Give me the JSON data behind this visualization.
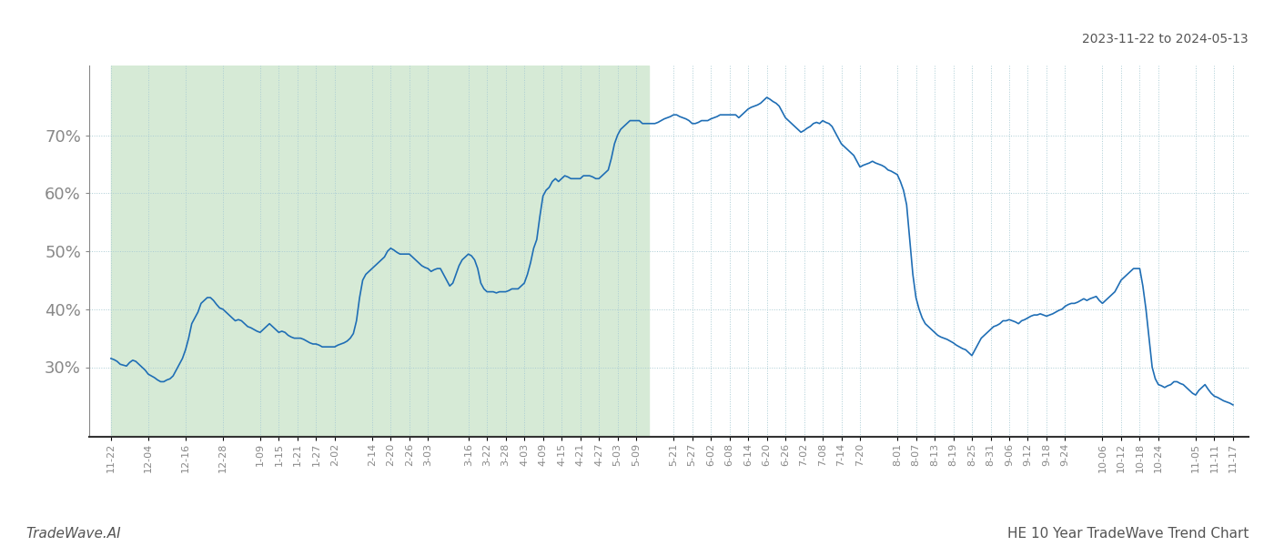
{
  "title_top_right": "2023-11-22 to 2024-05-13",
  "title_bottom_right": "HE 10 Year TradeWave Trend Chart",
  "title_bottom_left": "TradeWave.AI",
  "line_color": "#1f6eb5",
  "line_width": 1.2,
  "bg_color": "#ffffff",
  "shade_color": "#d6ead6",
  "shade_start": "2023-11-22",
  "shade_end": "2024-05-13",
  "x_start": "2023-11-15",
  "x_end": "2024-11-22",
  "ylim": [
    18,
    82
  ],
  "yticks": [
    30,
    40,
    50,
    60,
    70
  ],
  "ytick_labels": [
    "30%",
    "40%",
    "50%",
    "60%",
    "70%"
  ],
  "grid_color": "#aaccd4",
  "grid_style": ":",
  "xtick_dates": [
    "2023-11-22",
    "2023-12-04",
    "2023-12-16",
    "2023-12-28",
    "2024-01-09",
    "2024-01-15",
    "2024-01-21",
    "2024-01-27",
    "2024-02-02",
    "2024-02-14",
    "2024-02-20",
    "2024-02-26",
    "2024-03-03",
    "2024-03-16",
    "2024-03-22",
    "2024-03-28",
    "2024-04-03",
    "2024-04-09",
    "2024-04-15",
    "2024-04-21",
    "2024-04-27",
    "2024-05-03",
    "2024-05-09",
    "2024-05-21",
    "2024-05-27",
    "2024-06-02",
    "2024-06-08",
    "2024-06-14",
    "2024-06-20",
    "2024-06-26",
    "2024-07-02",
    "2024-07-08",
    "2024-07-14",
    "2024-07-20",
    "2024-08-01",
    "2024-08-07",
    "2024-08-13",
    "2024-08-19",
    "2024-08-25",
    "2024-08-31",
    "2024-09-06",
    "2024-09-12",
    "2024-09-18",
    "2024-09-24",
    "2024-10-06",
    "2024-10-12",
    "2024-10-18",
    "2024-10-24",
    "2024-11-05",
    "2024-11-11",
    "2024-11-17"
  ],
  "series": [
    [
      "2023-11-22",
      31.5
    ],
    [
      "2023-11-23",
      31.3
    ],
    [
      "2023-11-24",
      31.0
    ],
    [
      "2023-11-25",
      30.5
    ],
    [
      "2023-11-27",
      30.2
    ],
    [
      "2023-11-28",
      30.8
    ],
    [
      "2023-11-29",
      31.2
    ],
    [
      "2023-11-30",
      31.0
    ],
    [
      "2023-12-01",
      30.5
    ],
    [
      "2023-12-02",
      30.0
    ],
    [
      "2023-12-03",
      29.5
    ],
    [
      "2023-12-04",
      28.8
    ],
    [
      "2023-12-05",
      28.5
    ],
    [
      "2023-12-06",
      28.2
    ],
    [
      "2023-12-07",
      27.8
    ],
    [
      "2023-12-08",
      27.5
    ],
    [
      "2023-12-09",
      27.5
    ],
    [
      "2023-12-10",
      27.8
    ],
    [
      "2023-12-11",
      28.0
    ],
    [
      "2023-12-12",
      28.5
    ],
    [
      "2023-12-13",
      29.5
    ],
    [
      "2023-12-14",
      30.5
    ],
    [
      "2023-12-15",
      31.5
    ],
    [
      "2023-12-16",
      33.0
    ],
    [
      "2023-12-17",
      35.0
    ],
    [
      "2023-12-18",
      37.5
    ],
    [
      "2023-12-19",
      38.5
    ],
    [
      "2023-12-20",
      39.5
    ],
    [
      "2023-12-21",
      41.0
    ],
    [
      "2023-12-22",
      41.5
    ],
    [
      "2023-12-23",
      42.0
    ],
    [
      "2023-12-24",
      42.0
    ],
    [
      "2023-12-25",
      41.5
    ],
    [
      "2023-12-26",
      40.8
    ],
    [
      "2023-12-27",
      40.2
    ],
    [
      "2023-12-28",
      40.0
    ],
    [
      "2023-12-29",
      39.5
    ],
    [
      "2023-12-30",
      39.0
    ],
    [
      "2023-12-31",
      38.5
    ],
    [
      "2024-01-01",
      38.0
    ],
    [
      "2024-01-02",
      38.2
    ],
    [
      "2024-01-03",
      38.0
    ],
    [
      "2024-01-04",
      37.5
    ],
    [
      "2024-01-05",
      37.0
    ],
    [
      "2024-01-06",
      36.8
    ],
    [
      "2024-01-07",
      36.5
    ],
    [
      "2024-01-08",
      36.2
    ],
    [
      "2024-01-09",
      36.0
    ],
    [
      "2024-01-10",
      36.5
    ],
    [
      "2024-01-11",
      37.0
    ],
    [
      "2024-01-12",
      37.5
    ],
    [
      "2024-01-13",
      37.0
    ],
    [
      "2024-01-14",
      36.5
    ],
    [
      "2024-01-15",
      36.0
    ],
    [
      "2024-01-16",
      36.2
    ],
    [
      "2024-01-17",
      36.0
    ],
    [
      "2024-01-18",
      35.5
    ],
    [
      "2024-01-19",
      35.2
    ],
    [
      "2024-01-20",
      35.0
    ],
    [
      "2024-01-21",
      35.0
    ],
    [
      "2024-01-22",
      35.0
    ],
    [
      "2024-01-23",
      34.8
    ],
    [
      "2024-01-24",
      34.5
    ],
    [
      "2024-01-25",
      34.2
    ],
    [
      "2024-01-26",
      34.0
    ],
    [
      "2024-01-27",
      34.0
    ],
    [
      "2024-01-28",
      33.8
    ],
    [
      "2024-01-29",
      33.5
    ],
    [
      "2024-01-30",
      33.5
    ],
    [
      "2024-01-31",
      33.5
    ],
    [
      "2024-02-01",
      33.5
    ],
    [
      "2024-02-02",
      33.5
    ],
    [
      "2024-02-03",
      33.8
    ],
    [
      "2024-02-04",
      34.0
    ],
    [
      "2024-02-05",
      34.2
    ],
    [
      "2024-02-06",
      34.5
    ],
    [
      "2024-02-07",
      35.0
    ],
    [
      "2024-02-08",
      35.8
    ],
    [
      "2024-02-09",
      38.0
    ],
    [
      "2024-02-10",
      42.0
    ],
    [
      "2024-02-11",
      45.0
    ],
    [
      "2024-02-12",
      46.0
    ],
    [
      "2024-02-13",
      46.5
    ],
    [
      "2024-02-14",
      47.0
    ],
    [
      "2024-02-15",
      47.5
    ],
    [
      "2024-02-16",
      48.0
    ],
    [
      "2024-02-17",
      48.5
    ],
    [
      "2024-02-18",
      49.0
    ],
    [
      "2024-02-19",
      50.0
    ],
    [
      "2024-02-20",
      50.5
    ],
    [
      "2024-02-21",
      50.2
    ],
    [
      "2024-02-22",
      49.8
    ],
    [
      "2024-02-23",
      49.5
    ],
    [
      "2024-02-24",
      49.5
    ],
    [
      "2024-02-25",
      49.5
    ],
    [
      "2024-02-26",
      49.5
    ],
    [
      "2024-02-27",
      49.0
    ],
    [
      "2024-02-28",
      48.5
    ],
    [
      "2024-02-29",
      48.0
    ],
    [
      "2024-03-01",
      47.5
    ],
    [
      "2024-03-02",
      47.2
    ],
    [
      "2024-03-03",
      47.0
    ],
    [
      "2024-03-04",
      46.5
    ],
    [
      "2024-03-05",
      46.8
    ],
    [
      "2024-03-06",
      47.0
    ],
    [
      "2024-03-07",
      47.0
    ],
    [
      "2024-03-08",
      46.0
    ],
    [
      "2024-03-09",
      45.0
    ],
    [
      "2024-03-10",
      44.0
    ],
    [
      "2024-03-11",
      44.5
    ],
    [
      "2024-03-12",
      46.0
    ],
    [
      "2024-03-13",
      47.5
    ],
    [
      "2024-03-14",
      48.5
    ],
    [
      "2024-03-15",
      49.0
    ],
    [
      "2024-03-16",
      49.5
    ],
    [
      "2024-03-17",
      49.2
    ],
    [
      "2024-03-18",
      48.5
    ],
    [
      "2024-03-19",
      47.0
    ],
    [
      "2024-03-20",
      44.5
    ],
    [
      "2024-03-21",
      43.5
    ],
    [
      "2024-03-22",
      43.0
    ],
    [
      "2024-03-23",
      43.0
    ],
    [
      "2024-03-24",
      43.0
    ],
    [
      "2024-03-25",
      42.8
    ],
    [
      "2024-03-26",
      43.0
    ],
    [
      "2024-03-27",
      43.0
    ],
    [
      "2024-03-28",
      43.0
    ],
    [
      "2024-03-29",
      43.2
    ],
    [
      "2024-03-30",
      43.5
    ],
    [
      "2024-04-01",
      43.5
    ],
    [
      "2024-04-02",
      44.0
    ],
    [
      "2024-04-03",
      44.5
    ],
    [
      "2024-04-04",
      46.0
    ],
    [
      "2024-04-05",
      48.0
    ],
    [
      "2024-04-06",
      50.5
    ],
    [
      "2024-04-07",
      52.0
    ],
    [
      "2024-04-08",
      56.0
    ],
    [
      "2024-04-09",
      59.5
    ],
    [
      "2024-04-10",
      60.5
    ],
    [
      "2024-04-11",
      61.0
    ],
    [
      "2024-04-12",
      62.0
    ],
    [
      "2024-04-13",
      62.5
    ],
    [
      "2024-04-14",
      62.0
    ],
    [
      "2024-04-15",
      62.5
    ],
    [
      "2024-04-16",
      63.0
    ],
    [
      "2024-04-17",
      62.8
    ],
    [
      "2024-04-18",
      62.5
    ],
    [
      "2024-04-19",
      62.5
    ],
    [
      "2024-04-20",
      62.5
    ],
    [
      "2024-04-21",
      62.5
    ],
    [
      "2024-04-22",
      63.0
    ],
    [
      "2024-04-23",
      63.0
    ],
    [
      "2024-04-24",
      63.0
    ],
    [
      "2024-04-25",
      62.8
    ],
    [
      "2024-04-26",
      62.5
    ],
    [
      "2024-04-27",
      62.5
    ],
    [
      "2024-04-28",
      63.0
    ],
    [
      "2024-04-29",
      63.5
    ],
    [
      "2024-04-30",
      64.0
    ],
    [
      "2024-05-01",
      66.0
    ],
    [
      "2024-05-02",
      68.5
    ],
    [
      "2024-05-03",
      70.0
    ],
    [
      "2024-05-04",
      71.0
    ],
    [
      "2024-05-05",
      71.5
    ],
    [
      "2024-05-06",
      72.0
    ],
    [
      "2024-05-07",
      72.5
    ],
    [
      "2024-05-08",
      72.5
    ],
    [
      "2024-05-09",
      72.5
    ],
    [
      "2024-05-10",
      72.5
    ],
    [
      "2024-05-11",
      72.0
    ],
    [
      "2024-05-12",
      72.0
    ],
    [
      "2024-05-13",
      72.0
    ],
    [
      "2024-05-14",
      72.0
    ],
    [
      "2024-05-15",
      72.0
    ],
    [
      "2024-05-16",
      72.2
    ],
    [
      "2024-05-17",
      72.5
    ],
    [
      "2024-05-18",
      72.8
    ],
    [
      "2024-05-19",
      73.0
    ],
    [
      "2024-05-20",
      73.2
    ],
    [
      "2024-05-21",
      73.5
    ],
    [
      "2024-05-22",
      73.5
    ],
    [
      "2024-05-23",
      73.2
    ],
    [
      "2024-05-24",
      73.0
    ],
    [
      "2024-05-25",
      72.8
    ],
    [
      "2024-05-26",
      72.5
    ],
    [
      "2024-05-27",
      72.0
    ],
    [
      "2024-05-28",
      72.0
    ],
    [
      "2024-05-29",
      72.2
    ],
    [
      "2024-05-30",
      72.5
    ],
    [
      "2024-05-31",
      72.5
    ],
    [
      "2024-06-01",
      72.5
    ],
    [
      "2024-06-02",
      72.8
    ],
    [
      "2024-06-03",
      73.0
    ],
    [
      "2024-06-04",
      73.2
    ],
    [
      "2024-06-05",
      73.5
    ],
    [
      "2024-06-06",
      73.5
    ],
    [
      "2024-06-07",
      73.5
    ],
    [
      "2024-06-08",
      73.5
    ],
    [
      "2024-06-09",
      73.5
    ],
    [
      "2024-06-10",
      73.5
    ],
    [
      "2024-06-11",
      73.0
    ],
    [
      "2024-06-12",
      73.5
    ],
    [
      "2024-06-13",
      74.0
    ],
    [
      "2024-06-14",
      74.5
    ],
    [
      "2024-06-15",
      74.8
    ],
    [
      "2024-06-16",
      75.0
    ],
    [
      "2024-06-17",
      75.2
    ],
    [
      "2024-06-18",
      75.5
    ],
    [
      "2024-06-19",
      76.0
    ],
    [
      "2024-06-20",
      76.5
    ],
    [
      "2024-06-21",
      76.2
    ],
    [
      "2024-06-22",
      75.8
    ],
    [
      "2024-06-23",
      75.5
    ],
    [
      "2024-06-24",
      75.0
    ],
    [
      "2024-06-25",
      74.0
    ],
    [
      "2024-06-26",
      73.0
    ],
    [
      "2024-06-27",
      72.5
    ],
    [
      "2024-06-28",
      72.0
    ],
    [
      "2024-06-29",
      71.5
    ],
    [
      "2024-06-30",
      71.0
    ],
    [
      "2024-07-01",
      70.5
    ],
    [
      "2024-07-02",
      70.8
    ],
    [
      "2024-07-03",
      71.2
    ],
    [
      "2024-07-04",
      71.5
    ],
    [
      "2024-07-05",
      72.0
    ],
    [
      "2024-07-06",
      72.2
    ],
    [
      "2024-07-07",
      72.0
    ],
    [
      "2024-07-08",
      72.5
    ],
    [
      "2024-07-09",
      72.2
    ],
    [
      "2024-07-10",
      72.0
    ],
    [
      "2024-07-11",
      71.5
    ],
    [
      "2024-07-12",
      70.5
    ],
    [
      "2024-07-13",
      69.5
    ],
    [
      "2024-07-14",
      68.5
    ],
    [
      "2024-07-15",
      68.0
    ],
    [
      "2024-07-16",
      67.5
    ],
    [
      "2024-07-17",
      67.0
    ],
    [
      "2024-07-18",
      66.5
    ],
    [
      "2024-07-19",
      65.5
    ],
    [
      "2024-07-20",
      64.5
    ],
    [
      "2024-07-21",
      64.8
    ],
    [
      "2024-07-22",
      65.0
    ],
    [
      "2024-07-23",
      65.2
    ],
    [
      "2024-07-24",
      65.5
    ],
    [
      "2024-07-25",
      65.2
    ],
    [
      "2024-07-26",
      65.0
    ],
    [
      "2024-07-27",
      64.8
    ],
    [
      "2024-07-28",
      64.5
    ],
    [
      "2024-07-29",
      64.0
    ],
    [
      "2024-07-30",
      63.8
    ],
    [
      "2024-07-31",
      63.5
    ],
    [
      "2024-08-01",
      63.2
    ],
    [
      "2024-08-02",
      62.0
    ],
    [
      "2024-08-03",
      60.5
    ],
    [
      "2024-08-04",
      58.0
    ],
    [
      "2024-08-05",
      52.0
    ],
    [
      "2024-08-06",
      46.0
    ],
    [
      "2024-08-07",
      42.0
    ],
    [
      "2024-08-08",
      40.0
    ],
    [
      "2024-08-09",
      38.5
    ],
    [
      "2024-08-10",
      37.5
    ],
    [
      "2024-08-11",
      37.0
    ],
    [
      "2024-08-12",
      36.5
    ],
    [
      "2024-08-13",
      36.0
    ],
    [
      "2024-08-14",
      35.5
    ],
    [
      "2024-08-15",
      35.2
    ],
    [
      "2024-08-16",
      35.0
    ],
    [
      "2024-08-17",
      34.8
    ],
    [
      "2024-08-18",
      34.5
    ],
    [
      "2024-08-19",
      34.2
    ],
    [
      "2024-08-20",
      33.8
    ],
    [
      "2024-08-21",
      33.5
    ],
    [
      "2024-08-22",
      33.2
    ],
    [
      "2024-08-23",
      33.0
    ],
    [
      "2024-08-24",
      32.5
    ],
    [
      "2024-08-25",
      32.0
    ],
    [
      "2024-08-26",
      33.0
    ],
    [
      "2024-08-27",
      34.0
    ],
    [
      "2024-08-28",
      35.0
    ],
    [
      "2024-08-29",
      35.5
    ],
    [
      "2024-08-30",
      36.0
    ],
    [
      "2024-08-31",
      36.5
    ],
    [
      "2024-09-01",
      37.0
    ],
    [
      "2024-09-02",
      37.2
    ],
    [
      "2024-09-03",
      37.5
    ],
    [
      "2024-09-04",
      38.0
    ],
    [
      "2024-09-05",
      38.0
    ],
    [
      "2024-09-06",
      38.2
    ],
    [
      "2024-09-07",
      38.0
    ],
    [
      "2024-09-08",
      37.8
    ],
    [
      "2024-09-09",
      37.5
    ],
    [
      "2024-09-10",
      38.0
    ],
    [
      "2024-09-11",
      38.2
    ],
    [
      "2024-09-12",
      38.5
    ],
    [
      "2024-09-13",
      38.8
    ],
    [
      "2024-09-14",
      39.0
    ],
    [
      "2024-09-15",
      39.0
    ],
    [
      "2024-09-16",
      39.2
    ],
    [
      "2024-09-17",
      39.0
    ],
    [
      "2024-09-18",
      38.8
    ],
    [
      "2024-09-19",
      39.0
    ],
    [
      "2024-09-20",
      39.2
    ],
    [
      "2024-09-21",
      39.5
    ],
    [
      "2024-09-22",
      39.8
    ],
    [
      "2024-09-23",
      40.0
    ],
    [
      "2024-09-24",
      40.5
    ],
    [
      "2024-09-25",
      40.8
    ],
    [
      "2024-09-26",
      41.0
    ],
    [
      "2024-09-27",
      41.0
    ],
    [
      "2024-09-28",
      41.2
    ],
    [
      "2024-09-29",
      41.5
    ],
    [
      "2024-09-30",
      41.8
    ],
    [
      "2024-10-01",
      41.5
    ],
    [
      "2024-10-02",
      41.8
    ],
    [
      "2024-10-03",
      42.0
    ],
    [
      "2024-10-04",
      42.2
    ],
    [
      "2024-10-05",
      41.5
    ],
    [
      "2024-10-06",
      41.0
    ],
    [
      "2024-10-07",
      41.5
    ],
    [
      "2024-10-08",
      42.0
    ],
    [
      "2024-10-09",
      42.5
    ],
    [
      "2024-10-10",
      43.0
    ],
    [
      "2024-10-11",
      44.0
    ],
    [
      "2024-10-12",
      45.0
    ],
    [
      "2024-10-13",
      45.5
    ],
    [
      "2024-10-14",
      46.0
    ],
    [
      "2024-10-15",
      46.5
    ],
    [
      "2024-10-16",
      47.0
    ],
    [
      "2024-10-17",
      47.0
    ],
    [
      "2024-10-18",
      47.0
    ],
    [
      "2024-10-19",
      44.0
    ],
    [
      "2024-10-20",
      40.0
    ],
    [
      "2024-10-21",
      35.0
    ],
    [
      "2024-10-22",
      30.0
    ],
    [
      "2024-10-23",
      28.0
    ],
    [
      "2024-10-24",
      27.0
    ],
    [
      "2024-10-25",
      26.8
    ],
    [
      "2024-10-26",
      26.5
    ],
    [
      "2024-10-27",
      26.8
    ],
    [
      "2024-10-28",
      27.0
    ],
    [
      "2024-10-29",
      27.5
    ],
    [
      "2024-10-30",
      27.5
    ],
    [
      "2024-10-31",
      27.2
    ],
    [
      "2024-11-01",
      27.0
    ],
    [
      "2024-11-02",
      26.5
    ],
    [
      "2024-11-03",
      26.0
    ],
    [
      "2024-11-04",
      25.5
    ],
    [
      "2024-11-05",
      25.2
    ],
    [
      "2024-11-06",
      26.0
    ],
    [
      "2024-11-07",
      26.5
    ],
    [
      "2024-11-08",
      27.0
    ],
    [
      "2024-11-09",
      26.2
    ],
    [
      "2024-11-10",
      25.5
    ],
    [
      "2024-11-11",
      25.0
    ],
    [
      "2024-11-12",
      24.8
    ],
    [
      "2024-11-13",
      24.5
    ],
    [
      "2024-11-14",
      24.2
    ],
    [
      "2024-11-15",
      24.0
    ],
    [
      "2024-11-16",
      23.8
    ],
    [
      "2024-11-17",
      23.5
    ]
  ]
}
